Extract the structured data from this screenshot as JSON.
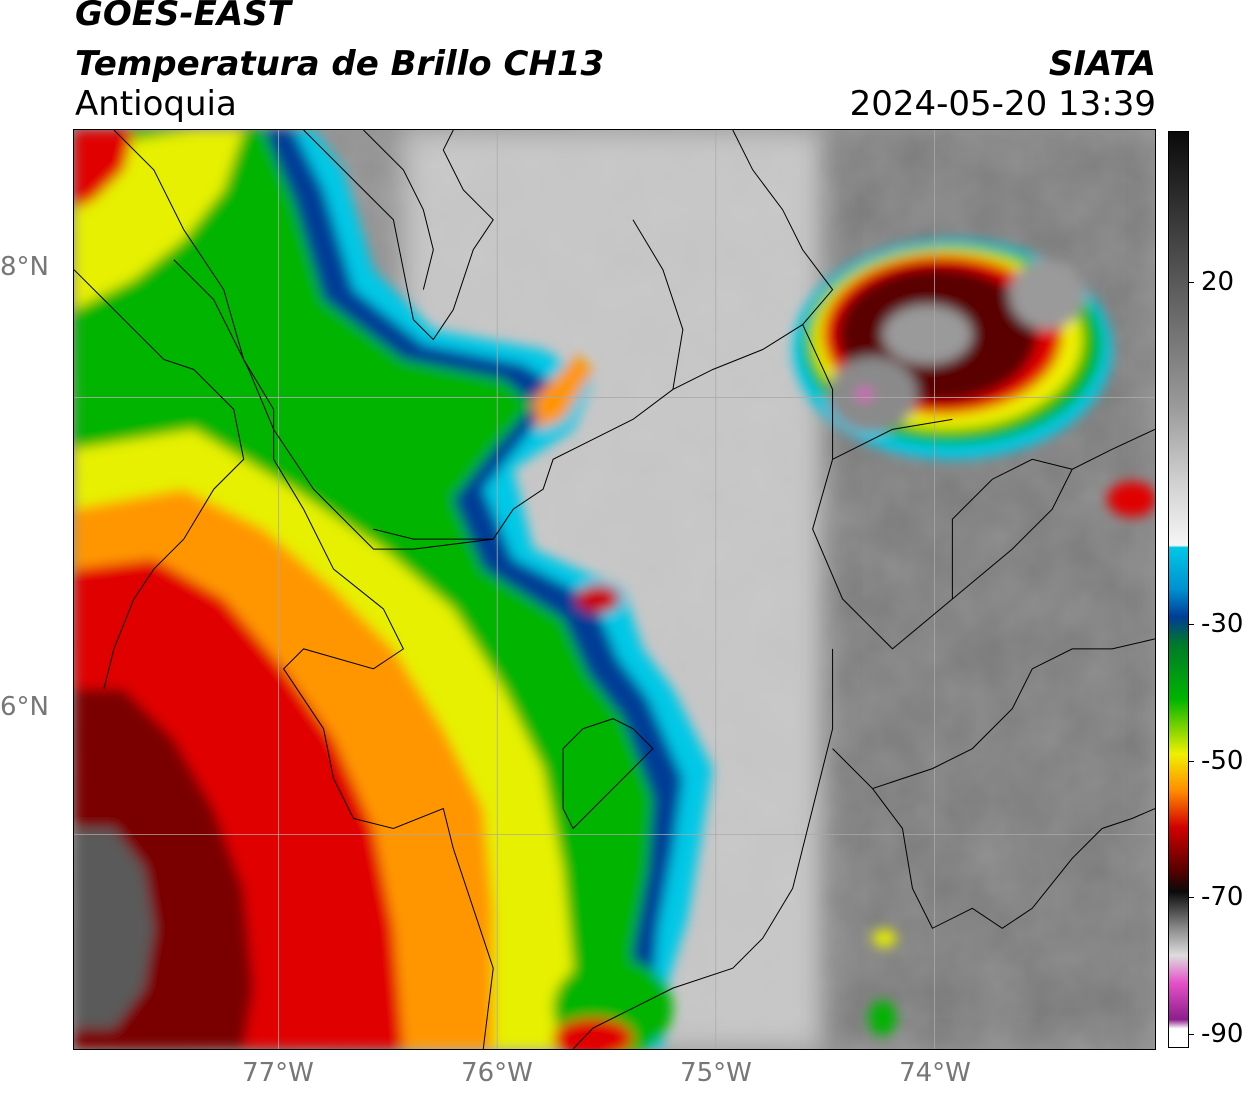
{
  "header": {
    "satellite": "GOES-EAST",
    "product": "Temperatura de Brillo CH13",
    "region": "Antioquia",
    "brand": "SIATA",
    "timestamp": "2024-05-20 13:39"
  },
  "map": {
    "lat_labels": [
      "8°N",
      "6°N"
    ],
    "lon_labels": [
      "77°W",
      "76°W",
      "75°W",
      "74°W"
    ],
    "lon_range": [
      -77.95,
      -73.05
    ],
    "lat_range": [
      5.0,
      9.2
    ]
  },
  "colorbar": {
    "tick_labels": [
      "20",
      "-30",
      "-50",
      "-70",
      "-90"
    ],
    "tick_values": [
      20,
      -30,
      -50,
      -70,
      -90
    ],
    "range": [
      -92,
      42
    ],
    "colors": {
      "white_top": "#f5f5f5",
      "cyan": "#00c8e6",
      "blue": "#003c96",
      "green": "#00b400",
      "yellow": "#f0f000",
      "orange": "#ff8c00",
      "red": "#d20000",
      "dark_red": "#500000",
      "black": "#0a0a0a",
      "magenta": "#e650c8",
      "purple": "#8c1e8c"
    }
  }
}
